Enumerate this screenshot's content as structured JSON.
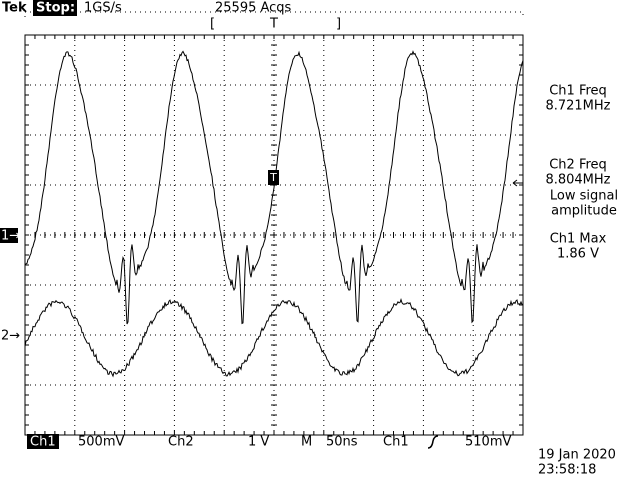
{
  "header": {
    "brand": "Tek",
    "status": "Stop:",
    "sample_rate": "1GS/s",
    "acquisitions": "25595 Acqs",
    "trigger_position": "T"
  },
  "measurements": [
    {
      "label": "Ch1 Freq",
      "value": "8.721MHz"
    },
    {
      "label": "Ch2 Freq",
      "value": "8.804MHz",
      "note": [
        "Low signal",
        "amplitude"
      ]
    },
    {
      "label": "Ch1 Max",
      "value": "1.86 V"
    }
  ],
  "markers": {
    "ch1": "1→",
    "ch2": "2→",
    "trigger": "T"
  },
  "footer": {
    "ch1": "Ch1",
    "ch1_scale": "500mV",
    "ch2": "Ch2",
    "ch2_scale": "1 V",
    "timebase_label": "M",
    "timebase": "50ns",
    "trigger_source": "Ch1",
    "trigger_level": "510mV",
    "date": "19 Jan 2020",
    "time": "23:58:18"
  }
}
